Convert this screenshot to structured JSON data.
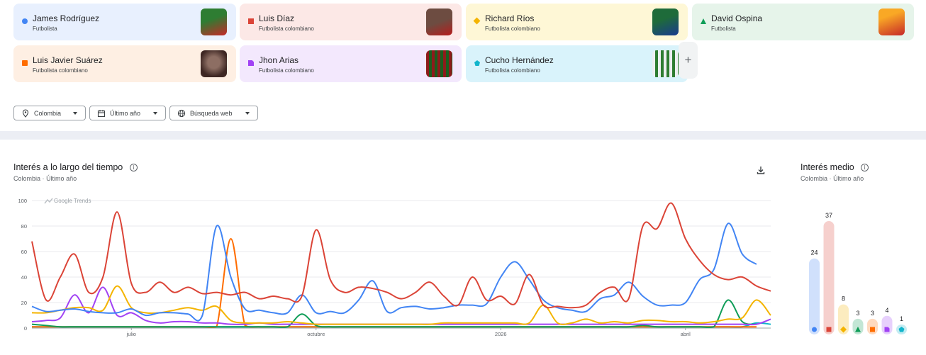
{
  "terms": [
    {
      "name": "James Rodríguez",
      "desc": "Futbolista",
      "color": "#4285f4",
      "bg": "#e8f0fe",
      "shape": "circle",
      "icon": "circle-marker-icon",
      "avatar": "james-rodriguez-photo",
      "photo": [
        "#2e7d32",
        "#c62828"
      ]
    },
    {
      "name": "Luis Díaz",
      "desc": "Futbolista colombiano",
      "color": "#db4437",
      "bg": "#fce8e6",
      "shape": "square",
      "icon": "square-marker-icon",
      "avatar": "luis-diaz-photo",
      "photo": [
        "#6d4c41",
        "#b71c1c"
      ]
    },
    {
      "name": "Richard Ríos",
      "desc": "Futbolista colombiano",
      "color": "#f4b400",
      "bg": "#fef7d6",
      "shape": "diamond",
      "icon": "diamond-marker-icon",
      "avatar": "richard-rios-photo",
      "photo": [
        "#1e6b3a",
        "#1a3a8f"
      ]
    },
    {
      "name": "David Ospina",
      "desc": "Futbolista",
      "color": "#0f9d58",
      "bg": "#e6f4ea",
      "shape": "triangle",
      "icon": "triangle-marker-icon",
      "avatar": "david-ospina-photo",
      "photo": [
        "#f9a825",
        "#c62828"
      ]
    },
    {
      "name": "Luis Javier Suárez",
      "desc": "Futbolista colombiano",
      "color": "#ff6d00",
      "bg": "#feefe3",
      "shape": "square",
      "icon": "orange-square-marker-icon",
      "avatar": "luis-javier-suarez-photo",
      "photo": [
        "#5d4037",
        "#f4c16b"
      ]
    },
    {
      "name": "Jhon Arias",
      "desc": "Futbolista colombiano",
      "color": "#a142f4",
      "bg": "#f3e8fd",
      "shape": "folded",
      "icon": "folded-square-marker-icon",
      "avatar": "jhon-arias-photo",
      "photo": [
        "#1b5e20",
        "#8e1b1b"
      ]
    },
    {
      "name": "Cucho Hernández",
      "desc": "Futbolista colombiano",
      "color": "#12b5cb",
      "bg": "#d9f3fb",
      "shape": "pentagon",
      "icon": "pentagon-marker-icon",
      "avatar": "cucho-hernandez-photo",
      "photo": [
        "#eceff1",
        "#2e7d32"
      ]
    }
  ],
  "add_term_icon": "plus-icon",
  "add_term_label": "+",
  "filters": [
    {
      "label": "Colombia",
      "icon": "location-pin-icon"
    },
    {
      "label": "Último año",
      "icon": "calendar-icon"
    },
    {
      "label": "Búsqueda web",
      "icon": "globe-icon"
    }
  ],
  "interest_over_time": {
    "title": "Interés a lo largo del tiempo",
    "subtitle_region": "Colombia",
    "subtitle_sep": "·",
    "subtitle_period": "Último año",
    "info_icon": "info-icon",
    "info_label": "i",
    "download_icon": "download-icon",
    "watermark": "Google Trends"
  },
  "average_interest": {
    "title": "Interés medio",
    "subtitle_region": "Colombia",
    "subtitle_sep": "·",
    "subtitle_period": "Último año",
    "info_icon": "info-icon",
    "info_label": "i"
  },
  "chart_data": [
    {
      "type": "line",
      "ylim": [
        0,
        100
      ],
      "yticks": [
        0,
        20,
        40,
        60,
        80,
        100
      ],
      "x_labels": [
        {
          "label": "julio",
          "at": 7
        },
        {
          "label": "octubre",
          "at": 20
        },
        {
          "label": "2026",
          "at": 33
        },
        {
          "label": "abril",
          "at": 46
        }
      ],
      "grid": true,
      "legend": "none",
      "series": [
        {
          "name": "James Rodríguez",
          "color": "#4285f4",
          "values": [
            17,
            13,
            14,
            15,
            13,
            12,
            12,
            15,
            10,
            12,
            12,
            11,
            10,
            80,
            40,
            15,
            14,
            12,
            12,
            26,
            12,
            13,
            12,
            22,
            37,
            13,
            16,
            17,
            15,
            16,
            18,
            18,
            19,
            40,
            52,
            38,
            22,
            16,
            14,
            13,
            23,
            26,
            36,
            25,
            18,
            18,
            20,
            38,
            46,
            82,
            58,
            50
          ]
        },
        {
          "name": "Luis Díaz",
          "color": "#db4437",
          "values": [
            68,
            22,
            40,
            58,
            28,
            40,
            91,
            35,
            28,
            36,
            28,
            32,
            27,
            28,
            26,
            28,
            23,
            25,
            23,
            25,
            77,
            38,
            28,
            32,
            31,
            28,
            23,
            28,
            36,
            25,
            18,
            40,
            22,
            25,
            19,
            42,
            18,
            17,
            16,
            18,
            28,
            32,
            23,
            80,
            78,
            98,
            70,
            53,
            42,
            38,
            40,
            33,
            29
          ]
        },
        {
          "name": "Richard Ríos",
          "color": "#f4b400",
          "values": [
            12,
            12,
            14,
            16,
            16,
            14,
            33,
            16,
            12,
            12,
            14,
            16,
            14,
            17,
            6,
            4,
            4,
            4,
            5,
            4,
            3,
            3,
            3,
            3,
            3,
            3,
            3,
            3,
            3,
            4,
            4,
            4,
            4,
            4,
            4,
            4,
            18,
            4,
            4,
            7,
            4,
            5,
            4,
            6,
            6,
            5,
            5,
            4,
            5,
            7,
            8,
            22,
            10
          ]
        },
        {
          "name": "David Ospina",
          "color": "#0f9d58",
          "values": [
            3,
            2,
            1,
            1,
            1,
            1,
            1,
            1,
            1,
            1,
            1,
            1,
            1,
            1,
            1,
            1,
            1,
            1,
            1,
            11,
            2,
            1,
            1,
            1,
            1,
            1,
            1,
            1,
            1,
            1,
            1,
            1,
            1,
            1,
            1,
            1,
            1,
            1,
            1,
            1,
            1,
            1,
            1,
            2,
            1,
            1,
            1,
            1,
            1,
            22,
            5,
            3
          ]
        },
        {
          "name": "Luis Javier Suárez",
          "color": "#ff6d00",
          "values": [
            1,
            1,
            1,
            1,
            1,
            1,
            1,
            1,
            1,
            1,
            1,
            1,
            1,
            1,
            70,
            2,
            1,
            1,
            1,
            1,
            1,
            1,
            1,
            1,
            1,
            1,
            1,
            1,
            1,
            1,
            1,
            1,
            1,
            1,
            1,
            1,
            1,
            1,
            1,
            1,
            1,
            1,
            1,
            1,
            1,
            1,
            1,
            1,
            1,
            1,
            1,
            1
          ]
        },
        {
          "name": "Jhon Arias",
          "color": "#a142f4",
          "values": [
            5,
            6,
            8,
            26,
            12,
            32,
            10,
            12,
            6,
            4,
            5,
            5,
            4,
            4,
            3,
            3,
            4,
            3,
            3,
            3,
            3,
            3,
            3,
            3,
            3,
            3,
            3,
            3,
            3,
            3,
            3,
            3,
            3,
            3,
            3,
            3,
            3,
            3,
            3,
            3,
            3,
            3,
            3,
            3,
            3,
            3,
            3,
            3,
            3,
            3,
            3,
            3,
            7
          ]
        },
        {
          "name": "Cucho Hernández",
          "color": "#12b5cb",
          "values": [
            1,
            1,
            1,
            1,
            1,
            1,
            1,
            1,
            1,
            1,
            1,
            1,
            1,
            1,
            1,
            1,
            1,
            1,
            1,
            1,
            1,
            1,
            1,
            1,
            1,
            1,
            1,
            1,
            1,
            1,
            1,
            1,
            1,
            1,
            1,
            1,
            1,
            1,
            1,
            1,
            1,
            1,
            1,
            1,
            1,
            1,
            1,
            1,
            1,
            1,
            1,
            4,
            3
          ]
        }
      ]
    },
    {
      "type": "bar",
      "categories": [
        "James Rodríguez",
        "Luis Díaz",
        "Richard Ríos",
        "David Ospina",
        "Luis Javier Suárez",
        "Jhon Arias",
        "Cucho Hernández"
      ],
      "values": [
        24,
        37,
        8,
        3,
        3,
        4,
        1
      ],
      "colors": [
        "#4285f4",
        "#db4437",
        "#f4b400",
        "#0f9d58",
        "#ff6d00",
        "#a142f4",
        "#12b5cb"
      ],
      "ylim": [
        0,
        37
      ],
      "legend": "none"
    }
  ]
}
